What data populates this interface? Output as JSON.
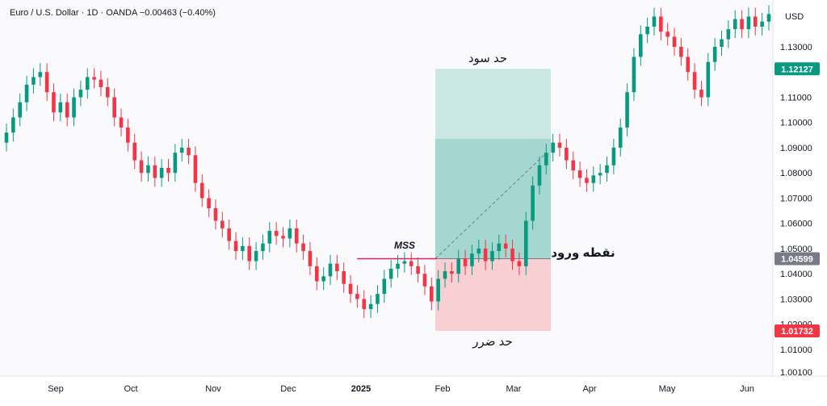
{
  "chart_data": {
    "type": "candlestick",
    "title": "Euro / U.S. Dollar · 1D · OANDA",
    "change": "−0.00463 (−0.40%)",
    "currency": "USD",
    "y_ticks": [
      "1.13000",
      "1.11000",
      "1.10000",
      "1.09000",
      "1.08000",
      "1.07000",
      "1.06000",
      "1.05000",
      "1.04000",
      "1.03000",
      "1.02000",
      "1.01000",
      "1.00100"
    ],
    "ylim": [
      1.001,
      1.15
    ],
    "x_ticks": [
      "Sep",
      "Oct",
      "Nov",
      "Dec",
      "2025",
      "Feb",
      "Mar",
      "Apr",
      "May",
      "Jun"
    ],
    "price_badges": [
      {
        "value": "1.12127",
        "color": "#089981"
      },
      {
        "value": "1.04599",
        "color": "#787b86"
      },
      {
        "value": "1.01732",
        "color": "#f23645"
      }
    ],
    "annotations": {
      "mss": "MSS",
      "take_profit": "حد سود",
      "entry": "نقطه ورود",
      "stop_loss": "حد ضرر"
    },
    "position": {
      "entry": 1.04599,
      "target": 1.12127,
      "stop": 1.01732
    },
    "colors": {
      "up": "#089981",
      "down": "#f23645",
      "profit_zone": "#089981",
      "loss_zone": "#f23645",
      "mss_line": "#e91e63"
    },
    "closes": [
      1.096,
      1.102,
      1.108,
      1.115,
      1.118,
      1.12,
      1.112,
      1.104,
      1.108,
      1.102,
      1.11,
      1.113,
      1.118,
      1.117,
      1.114,
      1.11,
      1.102,
      1.098,
      1.092,
      1.085,
      1.08,
      1.083,
      1.078,
      1.082,
      1.08,
      1.088,
      1.09,
      1.087,
      1.076,
      1.07,
      1.066,
      1.061,
      1.058,
      1.053,
      1.049,
      1.051,
      1.045,
      1.049,
      1.052,
      1.057,
      1.055,
      1.054,
      1.058,
      1.052,
      1.049,
      1.043,
      1.037,
      1.039,
      1.044,
      1.041,
      1.036,
      1.032,
      1.03,
      1.026,
      1.028,
      1.032,
      1.038,
      1.042,
      1.044,
      1.045,
      1.043,
      1.04,
      1.035,
      1.029,
      1.038,
      1.041,
      1.04,
      1.046,
      1.043,
      1.048,
      1.05,
      1.045,
      1.049,
      1.052,
      1.05,
      1.045,
      1.043,
      1.061,
      1.075,
      1.083,
      1.088,
      1.092,
      1.09,
      1.085,
      1.081,
      1.078,
      1.076,
      1.079,
      1.08,
      1.083,
      1.09,
      1.098,
      1.112,
      1.126,
      1.135,
      1.138,
      1.142,
      1.136,
      1.134,
      1.13,
      1.126,
      1.12,
      1.113,
      1.11,
      1.124,
      1.13,
      1.133,
      1.137,
      1.141,
      1.137,
      1.142,
      1.138,
      1.14,
      1.143
    ]
  }
}
